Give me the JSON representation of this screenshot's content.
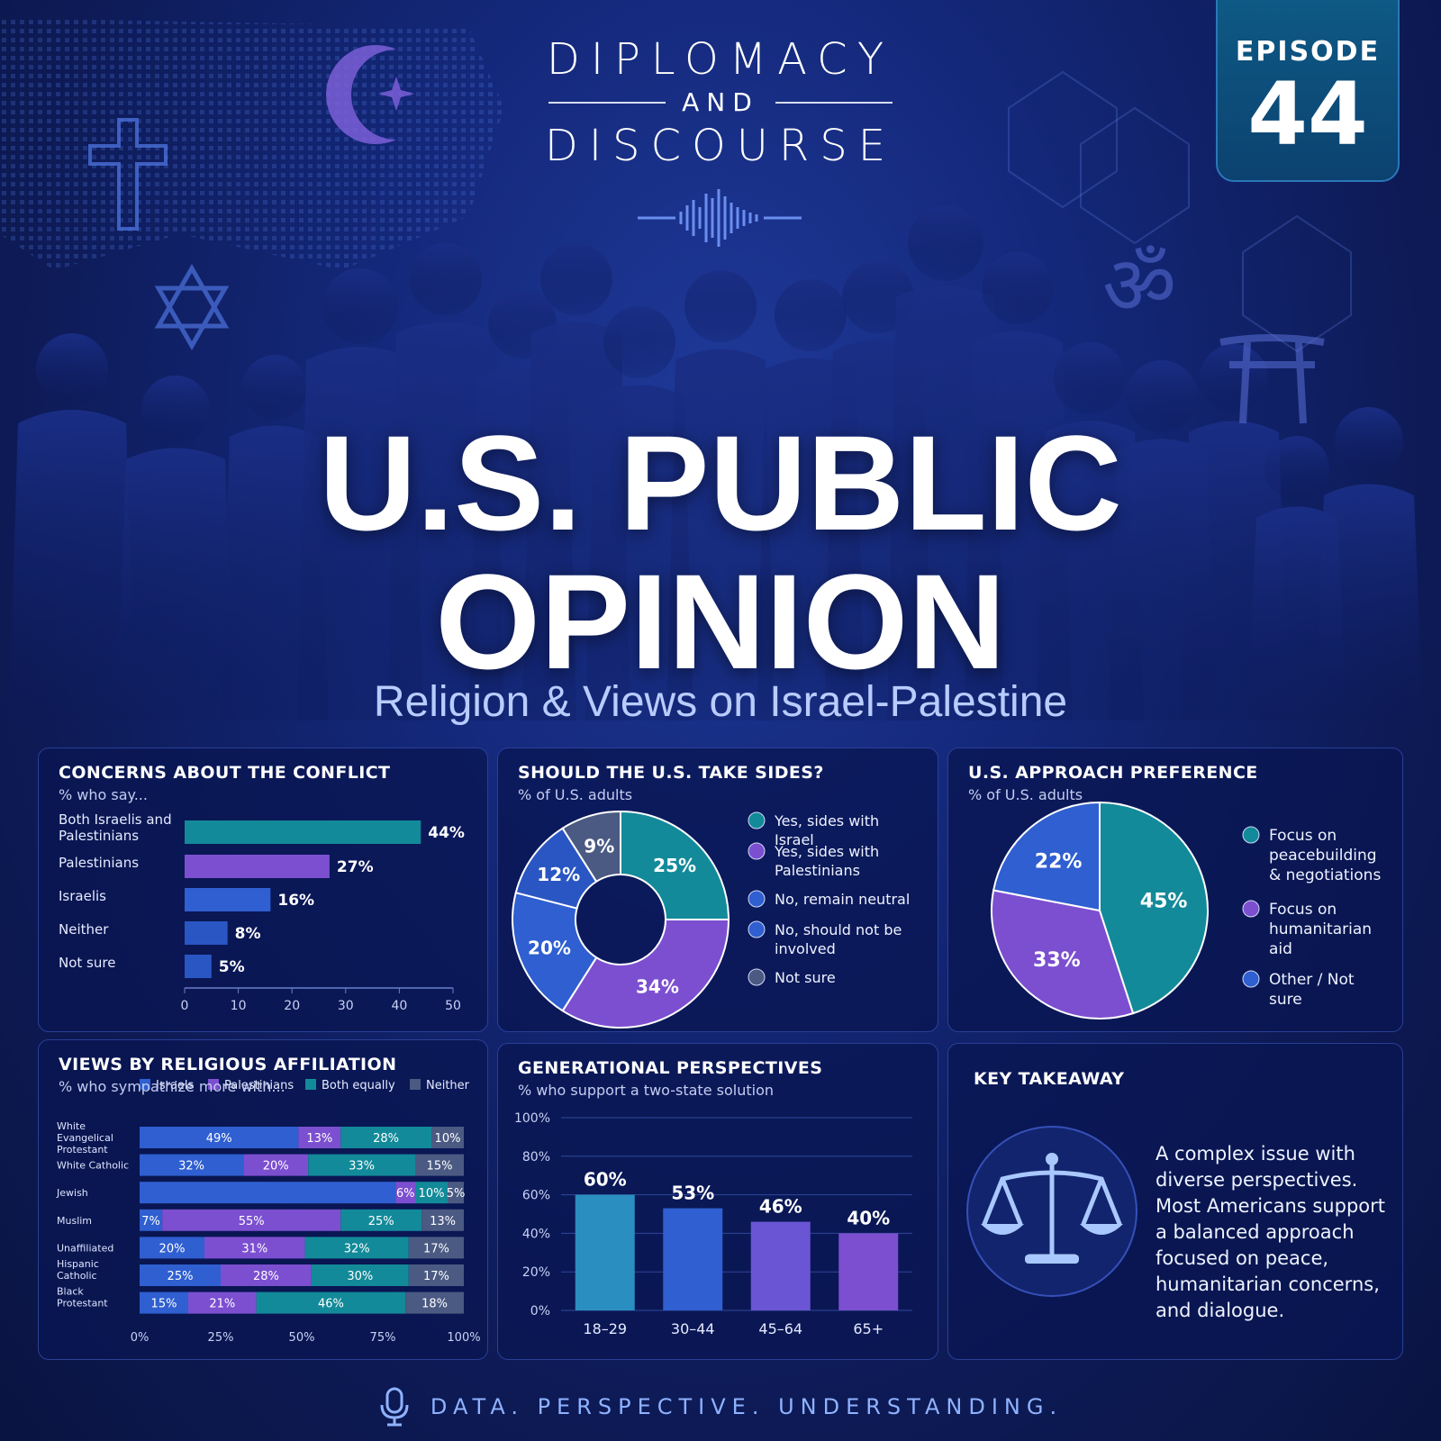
{
  "header": {
    "brand_line1": "DIPLOMACY",
    "brand_line2": "AND",
    "brand_line3": "DISCOURSE",
    "episode_label": "EPISODE",
    "episode_number": "44"
  },
  "hero": {
    "title_line1": "U.S. PUBLIC",
    "title_line2": "OPINION",
    "subtitle": "Religion & Views on Israel-Palestine"
  },
  "colors": {
    "teal": "#138a99",
    "purple": "#7c4fd0",
    "blue": "#2f5fd0",
    "blue2": "#2a56c4",
    "slate": "#4b5a82",
    "text": "#ffffff"
  },
  "footer": {
    "tagline": "DATA. PERSPECTIVE. UNDERSTANDING."
  },
  "chart_data": [
    {
      "id": "concerns",
      "type": "bar",
      "orientation": "horizontal",
      "title": "CONCERNS ABOUT THE CONFLICT",
      "subtitle": "% who say...",
      "categories": [
        "Both Israelis and Palestinians",
        "Palestinians",
        "Israelis",
        "Neither",
        "Not sure"
      ],
      "values": [
        44,
        27,
        16,
        8,
        5
      ],
      "value_labels": [
        "44%",
        "27%",
        "16%",
        "8%",
        "5%"
      ],
      "colors": [
        "#138a99",
        "#7c4fd0",
        "#2f5fd0",
        "#2a56c4",
        "#2a56c4"
      ],
      "xlim": [
        0,
        50
      ],
      "xticks": [
        "0",
        "10",
        "20",
        "30",
        "40",
        "50"
      ]
    },
    {
      "id": "take_sides",
      "type": "pie",
      "style": "donut",
      "title": "SHOULD THE U.S. TAKE SIDES?",
      "subtitle": "% of U.S. adults",
      "slices": [
        {
          "label": "Yes, sides with Israel",
          "value": 25,
          "color": "#138a99"
        },
        {
          "label": "Yes, sides with Palestinians",
          "value": 34,
          "color": "#7c4fd0"
        },
        {
          "label": "No, remain neutral",
          "value": 20,
          "color": "#2f5fd0"
        },
        {
          "label": "No, should not be involved",
          "value": 12,
          "color": "#2a56c4"
        },
        {
          "label": "Not sure",
          "value": 9,
          "color": "#4b5a82"
        }
      ],
      "legend": [
        {
          "label": "Yes, sides with Israel",
          "color": "#138a99"
        },
        {
          "label": "Yes, sides with Palestinians",
          "color": "#7c4fd0"
        },
        {
          "label": "No, remain neutral",
          "color": "#2f5fd0"
        },
        {
          "label": "No, should not be involved",
          "color": "#2f5fd0"
        },
        {
          "label": "Not sure",
          "color": "#4b5a82"
        }
      ],
      "legend_position": "right"
    },
    {
      "id": "approach",
      "type": "pie",
      "title": "U.S. APPROACH PREFERENCE",
      "subtitle": "% of U.S. adults",
      "slices": [
        {
          "label": "Focus on peacebuilding & negotiations",
          "value": 45,
          "color": "#138a99"
        },
        {
          "label": "Focus on humanitarian aid",
          "value": 33,
          "color": "#7c4fd0"
        },
        {
          "label": "Other / Not sure",
          "value": 22,
          "color": "#2f5fd0"
        }
      ],
      "legend_position": "right"
    },
    {
      "id": "religion",
      "type": "bar",
      "orientation": "horizontal",
      "stacked": true,
      "title": "VIEWS BY RELIGIOUS AFFILIATION",
      "subtitle": "% who sympathize more with...",
      "categories": [
        "White Evangelical Protestant",
        "White Catholic",
        "Jewish",
        "Muslim",
        "Unaffiliated",
        "Hispanic Catholic",
        "Black Protestant"
      ],
      "series": [
        {
          "name": "Israels",
          "color": "#2f5fd0",
          "values": [
            49,
            32,
            79,
            7,
            20,
            25,
            15
          ],
          "labels": [
            "49%",
            "32%",
            "",
            "7%",
            "20%",
            "25%",
            "15%"
          ]
        },
        {
          "name": "Palestinians",
          "color": "#7c4fd0",
          "values": [
            13,
            20,
            6,
            55,
            31,
            28,
            21
          ],
          "labels": [
            "13%",
            "20%",
            "6%",
            "55%",
            "31%",
            "28%",
            "21%"
          ]
        },
        {
          "name": "Both equally",
          "color": "#138a99",
          "values": [
            28,
            33,
            10,
            25,
            32,
            30,
            46
          ],
          "labels": [
            "28%",
            "33%",
            "10%",
            "25%",
            "32%",
            "30%",
            "46%"
          ]
        },
        {
          "name": "Neither",
          "color": "#4b5a82",
          "values": [
            10,
            15,
            5,
            13,
            17,
            17,
            18
          ],
          "labels": [
            "10%",
            "15%",
            "5%",
            "13%",
            "17%",
            "17%",
            "18%"
          ]
        }
      ],
      "xlim": [
        0,
        100
      ],
      "xticks": [
        "0%",
        "25%",
        "50%",
        "75%",
        "100%"
      ],
      "legend_position": "top"
    },
    {
      "id": "generations",
      "type": "bar",
      "title": "GENERATIONAL PERSPECTIVES",
      "subtitle": "% who support a two-state solution",
      "categories": [
        "18–29",
        "30–44",
        "45–64",
        "65+"
      ],
      "values": [
        60,
        53,
        46,
        40
      ],
      "value_labels": [
        "60%",
        "53%",
        "46%",
        "40%"
      ],
      "colors": [
        "#2a8fc0",
        "#2f5fd0",
        "#6a55d4",
        "#7c4fd0"
      ],
      "ylim": [
        0,
        100
      ],
      "yticks": [
        "0%",
        "20%",
        "40%",
        "60%",
        "80%",
        "100%"
      ],
      "grid": true
    }
  ],
  "takeaway": {
    "title": "KEY TAKEAWAY",
    "text": "A complex issue with diverse perspectives. Most Americans support a balanced approach focused on peace, humanitarian concerns, and dialogue.",
    "icon": "scales-icon"
  }
}
